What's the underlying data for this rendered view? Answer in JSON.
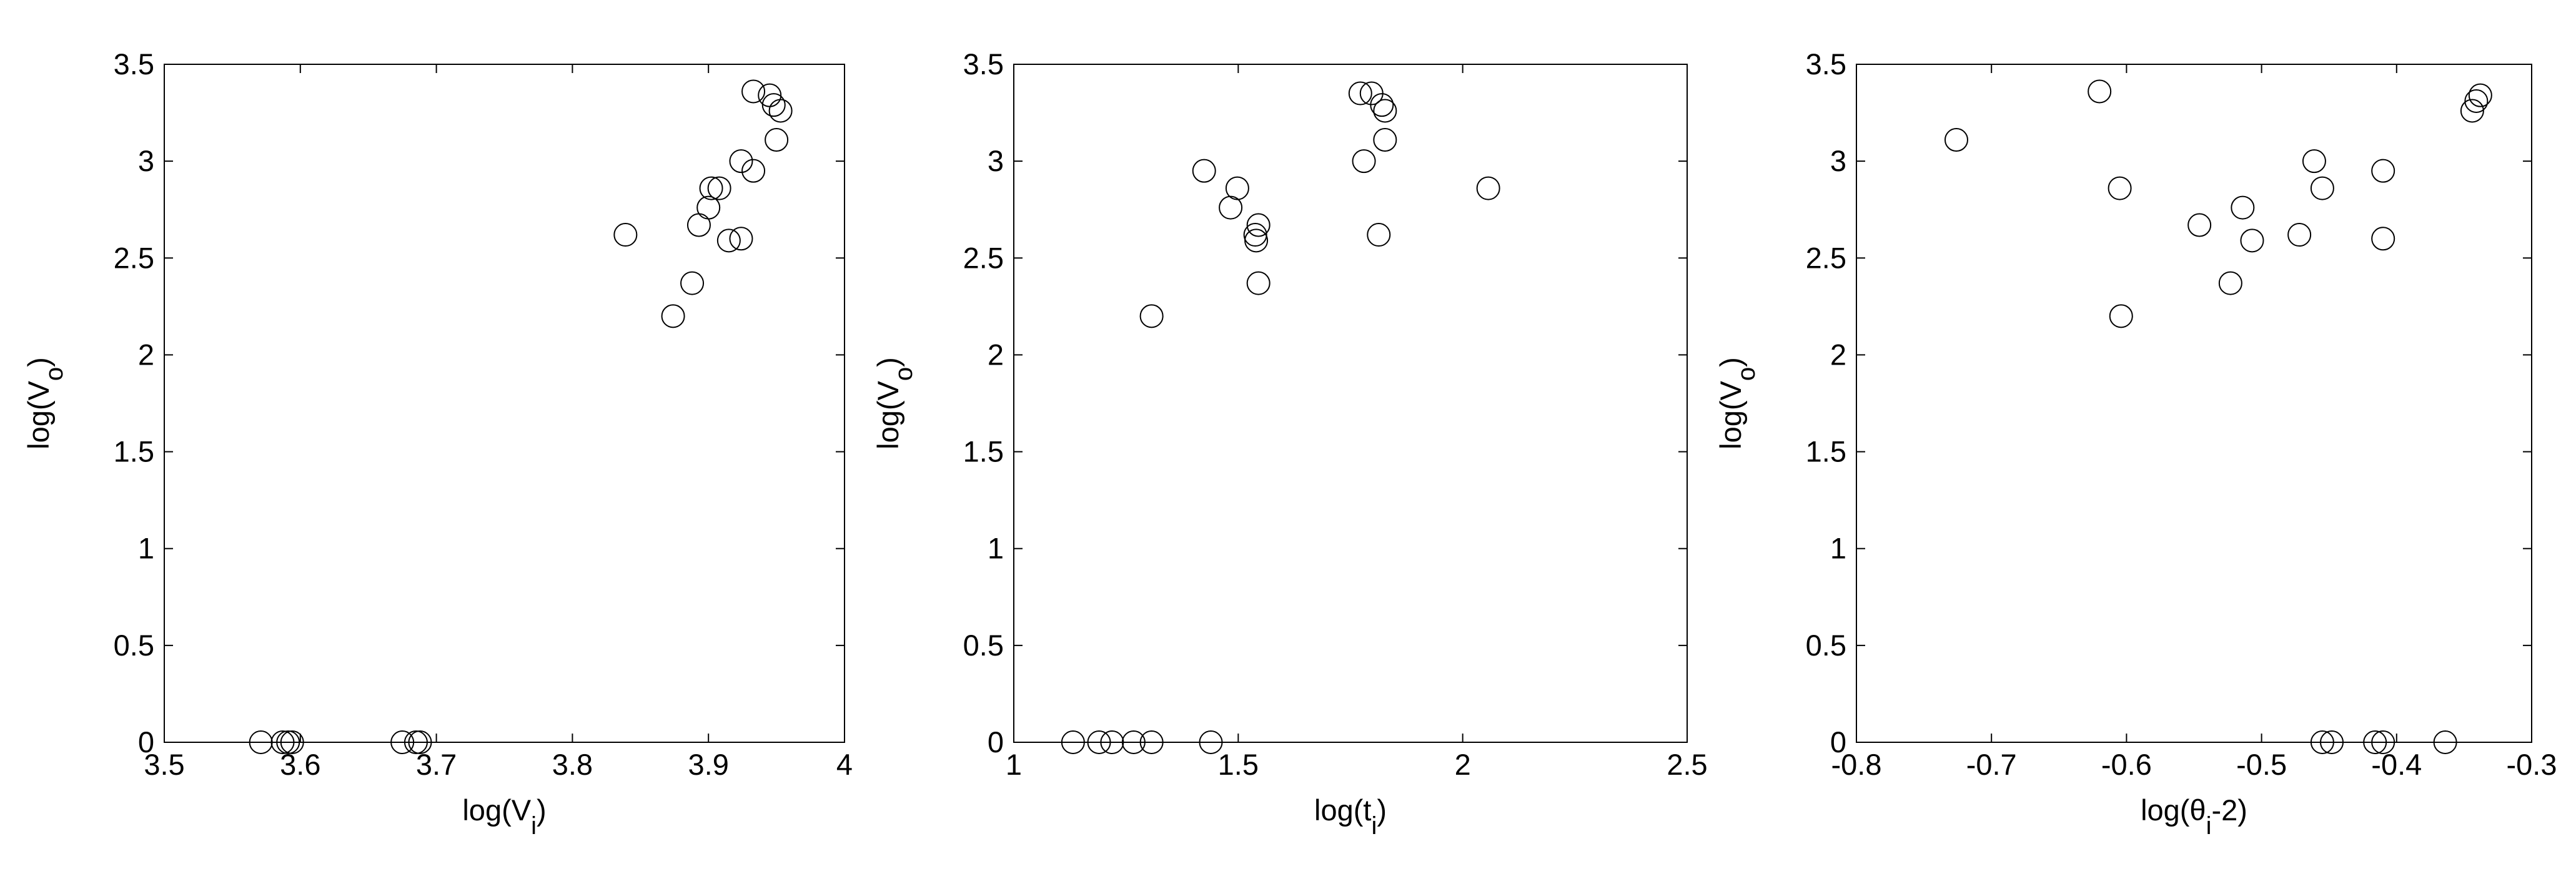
{
  "chart_data": [
    {
      "type": "scatter",
      "xlabel": [
        "log(V",
        "i",
        ")"
      ],
      "ylabel": [
        "log(V",
        "o",
        ")"
      ],
      "xlim": [
        3.5,
        4
      ],
      "ylim": [
        0,
        3.5
      ],
      "xticks": [
        3.5,
        3.6,
        3.7,
        3.8,
        3.9,
        4
      ],
      "yticks": [
        0,
        0.5,
        1,
        1.5,
        2,
        2.5,
        3,
        3.5
      ],
      "color": "#000000",
      "x": [
        3.839,
        3.874,
        3.888,
        3.893,
        3.9,
        3.902,
        3.908,
        3.915,
        3.924,
        3.924,
        3.933,
        3.933,
        3.945,
        3.948,
        3.953,
        3.95,
        3.571,
        3.587,
        3.591,
        3.594,
        3.675,
        3.685,
        3.688
      ],
      "values": [
        2.62,
        2.2,
        2.37,
        2.67,
        2.76,
        2.86,
        2.86,
        2.59,
        2.6,
        3.0,
        2.95,
        3.36,
        3.34,
        3.29,
        3.26,
        3.11,
        0,
        0,
        0,
        0,
        0,
        0,
        0
      ]
    },
    {
      "type": "scatter",
      "xlabel": [
        "log(t",
        "i",
        ")"
      ],
      "ylabel": [
        "log(V",
        "o",
        ")"
      ],
      "xlim": [
        1,
        2.5
      ],
      "ylim": [
        0,
        3.5
      ],
      "xticks": [
        1,
        1.5,
        2,
        2.5
      ],
      "yticks": [
        0,
        0.5,
        1,
        1.5,
        2,
        2.5,
        3,
        3.5
      ],
      "color": "#000000",
      "x": [
        1.307,
        1.424,
        1.483,
        1.498,
        1.538,
        1.54,
        1.545,
        1.545,
        1.772,
        1.797,
        1.82,
        1.827,
        1.78,
        1.813,
        1.827,
        2.057,
        1.132,
        1.19,
        1.219,
        1.267,
        1.307,
        1.439
      ],
      "values": [
        2.2,
        2.95,
        2.76,
        2.86,
        2.62,
        2.59,
        2.67,
        2.37,
        3.35,
        3.35,
        3.29,
        3.26,
        3.0,
        2.62,
        3.11,
        2.86,
        0,
        0,
        0,
        0,
        0,
        0
      ]
    },
    {
      "type": "scatter",
      "xlabel": [
        "log(θ",
        "i",
        "-2)"
      ],
      "ylabel": [
        "log(V",
        "o",
        ")"
      ],
      "xlim": [
        -0.8,
        -0.3
      ],
      "ylim": [
        0,
        3.5
      ],
      "xticks": [
        -0.8,
        -0.7,
        -0.6,
        -0.5,
        -0.4,
        -0.3
      ],
      "yticks": [
        0,
        0.5,
        1,
        1.5,
        2,
        2.5,
        3,
        3.5
      ],
      "color": "#000000",
      "x": [
        -0.726,
        -0.62,
        -0.605,
        -0.604,
        -0.546,
        -0.523,
        -0.514,
        -0.507,
        -0.472,
        -0.461,
        -0.455,
        -0.41,
        -0.41,
        -0.344,
        -0.341,
        -0.338,
        -0.455,
        -0.448,
        -0.416,
        -0.41,
        -0.364
      ],
      "values": [
        3.11,
        3.36,
        2.86,
        2.2,
        2.67,
        2.37,
        2.76,
        2.59,
        2.62,
        3.0,
        2.86,
        2.95,
        2.6,
        3.26,
        3.31,
        3.34,
        0,
        0,
        0,
        0,
        0
      ]
    }
  ]
}
